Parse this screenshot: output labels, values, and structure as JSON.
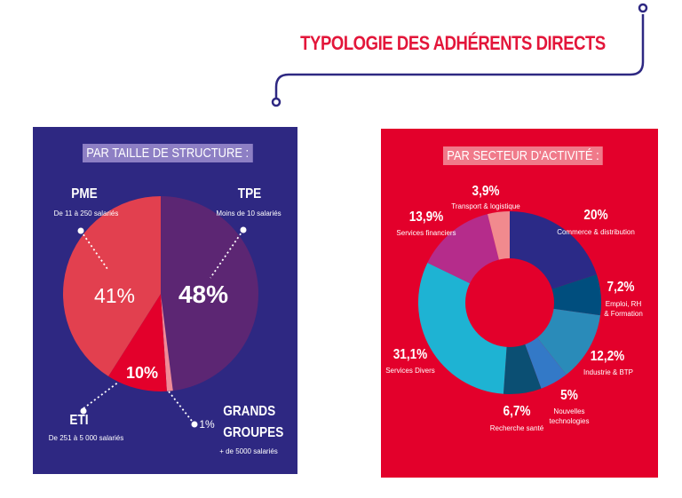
{
  "title": "TYPOLOGIE DES ADHÉRENTS DIRECTS",
  "colors": {
    "title_red": "#e3163a",
    "panel_left_bg": "#2e2882",
    "panel_right_bg": "#e3002b",
    "connector": "#2e2882"
  },
  "chart_data": [
    {
      "type": "pie",
      "heading": "PAR TAILLE DE STRUCTURE :",
      "slices": [
        {
          "name": "TPE",
          "sub": "Moins de 10 salariés",
          "value": 48,
          "label": "48%",
          "color": "#5c2673"
        },
        {
          "name": "GRANDS GROUPES",
          "sub": "+ de 5000 salariés",
          "value": 1,
          "label": "1%",
          "color": "#f08a96"
        },
        {
          "name": "ETI",
          "sub": "De 251 à 5 000 salariés",
          "value": 10,
          "label": "10%",
          "color": "#e3002b"
        },
        {
          "name": "PME",
          "sub": "De 11 à 250 salariés",
          "value": 41,
          "label": "41%",
          "color": "#e2404f"
        }
      ]
    },
    {
      "type": "pie",
      "subtype": "donut",
      "heading": "PAR SECTEUR D'ACTIVITÉ :",
      "slices": [
        {
          "name": "Commerce & distribution",
          "value": 20,
          "label": "20%",
          "color": "#2b2a87"
        },
        {
          "name": "Emploi, RH & Formation",
          "value": 7.2,
          "label": "7,2%",
          "color": "#004e7e"
        },
        {
          "name": "Industrie & BTP",
          "value": 12.2,
          "label": "12,2%",
          "color": "#2a8bb9"
        },
        {
          "name": "Nouvelles technologies",
          "value": 5,
          "label": "5%",
          "color": "#3379c7"
        },
        {
          "name": "Recherche santé",
          "value": 6.7,
          "label": "6,7%",
          "color": "#0b4f73"
        },
        {
          "name": "Services Divers",
          "value": 31.1,
          "label": "31,1%",
          "color": "#1eb3d3"
        },
        {
          "name": "Services financiers",
          "value": 13.9,
          "label": "13,9%",
          "color": "#b52c8b"
        },
        {
          "name": "Transport & logistique",
          "value": 3.9,
          "label": "3,9%",
          "color": "#f18a8e"
        }
      ]
    }
  ]
}
